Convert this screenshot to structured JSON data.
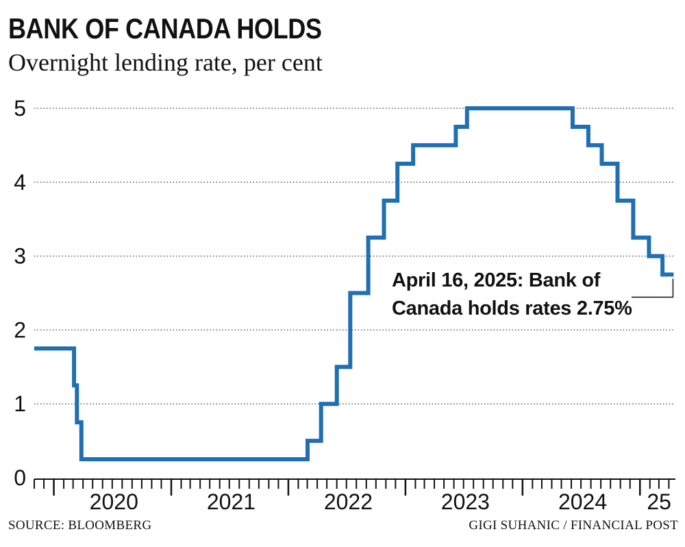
{
  "header": {
    "title": "BANK OF CANADA HOLDS",
    "subtitle": "Overnight lending rate, per cent"
  },
  "footer": {
    "source": "SOURCE: BLOOMBERG",
    "credit": "GIGI SUHANIC / FINANCIAL POST"
  },
  "colors": {
    "line": "#1f6fb2",
    "text": "#111111",
    "grid": "#555555"
  },
  "chart_data": {
    "type": "line",
    "step": true,
    "title": "BANK OF CANADA HOLDS",
    "subtitle": "Overnight lending rate, per cent",
    "xlabel": "",
    "ylabel": "",
    "ylim": [
      0,
      5
    ],
    "xlim": [
      "2019-11-01",
      "2025-04-30"
    ],
    "yticks": [
      "0",
      "1",
      "2",
      "3",
      "4",
      "5"
    ],
    "xticks": [
      {
        "label": "2020",
        "year": 2020
      },
      {
        "label": "2021",
        "year": 2021
      },
      {
        "label": "2022",
        "year": 2022
      },
      {
        "label": "2023",
        "year": 2023
      },
      {
        "label": "2024",
        "year": 2024
      },
      {
        "label": "25",
        "year": 2025
      }
    ],
    "grid": true,
    "series": [
      {
        "values": [
          {
            "x": "2019-11-01",
            "y": 1.75
          },
          {
            "x": "2020-01-06",
            "y": 1.75
          },
          {
            "x": "2020-03-04",
            "y": 1.25
          },
          {
            "x": "2020-03-13",
            "y": 0.75
          },
          {
            "x": "2020-03-27",
            "y": 0.25
          },
          {
            "x": "2022-03-02",
            "y": 0.5
          },
          {
            "x": "2022-04-13",
            "y": 1.0
          },
          {
            "x": "2022-06-01",
            "y": 1.5
          },
          {
            "x": "2022-07-13",
            "y": 2.5
          },
          {
            "x": "2022-09-07",
            "y": 3.25
          },
          {
            "x": "2022-10-26",
            "y": 3.75
          },
          {
            "x": "2022-12-07",
            "y": 4.25
          },
          {
            "x": "2023-01-25",
            "y": 4.5
          },
          {
            "x": "2023-06-07",
            "y": 4.75
          },
          {
            "x": "2023-07-12",
            "y": 5.0
          },
          {
            "x": "2024-06-05",
            "y": 4.75
          },
          {
            "x": "2024-07-24",
            "y": 4.5
          },
          {
            "x": "2024-09-04",
            "y": 4.25
          },
          {
            "x": "2024-10-23",
            "y": 3.75
          },
          {
            "x": "2024-12-11",
            "y": 3.25
          },
          {
            "x": "2025-01-29",
            "y": 3.0
          },
          {
            "x": "2025-03-12",
            "y": 2.75
          },
          {
            "x": "2025-04-16",
            "y": 2.75
          }
        ]
      }
    ],
    "annotations": [
      {
        "text_line1": "April 16, 2025: Bank of",
        "text_line2": "Canada holds rates 2.75%",
        "x": "2025-04-16",
        "y": 2.75
      }
    ]
  }
}
